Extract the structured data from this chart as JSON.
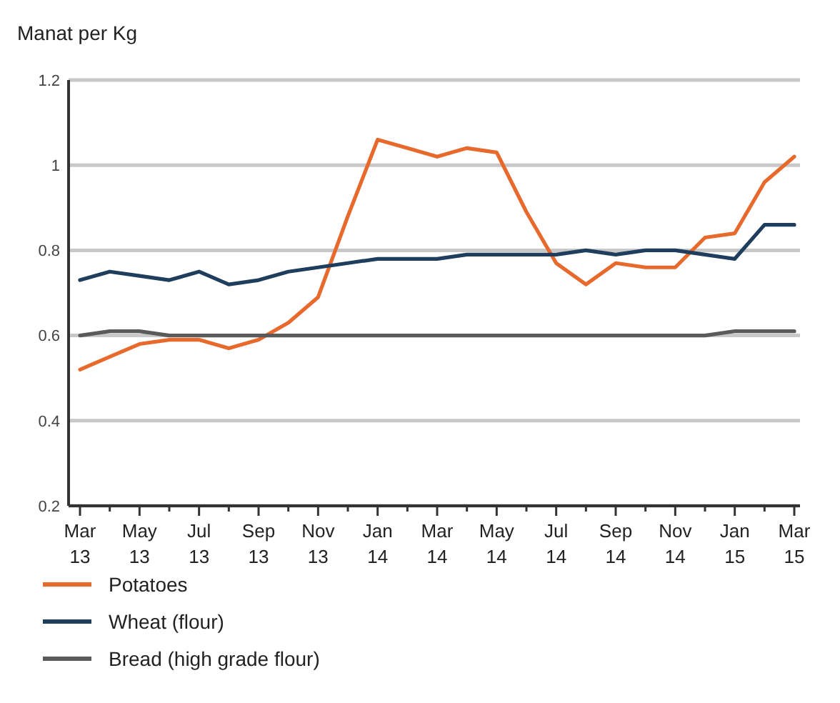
{
  "chart_data": {
    "type": "line",
    "ylabel": "Manat per Kg",
    "categories": [
      "Mar 13",
      null,
      "May 13",
      null,
      "Jul 13",
      null,
      "Sep 13",
      null,
      "Nov 13",
      null,
      "Jan 14",
      null,
      "Mar 14",
      null,
      "May 14",
      null,
      "Jul 14",
      null,
      "Sep 14",
      null,
      "Nov 14",
      null,
      "Jan 15",
      null,
      "Mar 15"
    ],
    "series": [
      {
        "name": "Potatoes",
        "color": "#e8692c",
        "values": [
          0.52,
          0.55,
          0.58,
          0.59,
          0.59,
          0.57,
          0.59,
          0.63,
          0.69,
          0.88,
          1.06,
          1.04,
          1.02,
          1.04,
          1.03,
          0.89,
          0.77,
          0.72,
          0.77,
          0.76,
          0.76,
          0.83,
          0.84,
          0.96,
          1.02
        ]
      },
      {
        "name": "Wheat (flour)",
        "color": "#1f3d5c",
        "values": [
          0.73,
          0.75,
          0.74,
          0.73,
          0.75,
          0.72,
          0.73,
          0.75,
          0.76,
          0.77,
          0.78,
          0.78,
          0.78,
          0.79,
          0.79,
          0.79,
          0.79,
          0.8,
          0.79,
          0.8,
          0.8,
          0.79,
          0.78,
          0.86,
          0.86
        ]
      },
      {
        "name": "Bread (high grade flour)",
        "color": "#5a5a5a",
        "values": [
          0.6,
          0.61,
          0.61,
          0.6,
          0.6,
          0.6,
          0.6,
          0.6,
          0.6,
          0.6,
          0.6,
          0.6,
          0.6,
          0.6,
          0.6,
          0.6,
          0.6,
          0.6,
          0.6,
          0.6,
          0.6,
          0.6,
          0.61,
          0.61,
          0.61
        ]
      }
    ],
    "ylim": [
      0.2,
      1.2
    ],
    "yticks": [
      0.2,
      0.4,
      0.6,
      0.8,
      1,
      1.2
    ],
    "grid": "y",
    "legend": "bottom",
    "line_style": "solid",
    "marker": "none"
  }
}
